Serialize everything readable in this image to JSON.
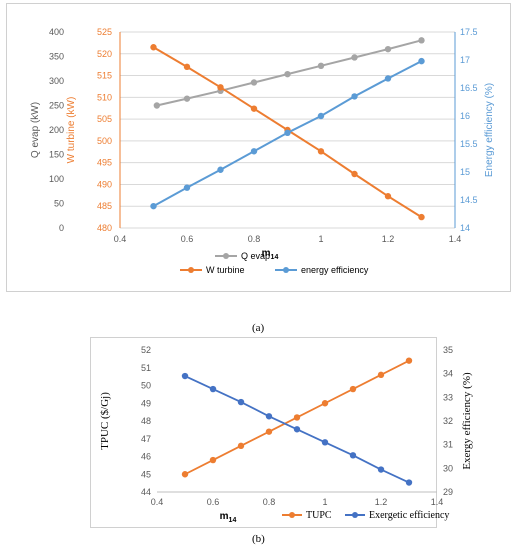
{
  "captions": {
    "a": "(a)",
    "b": "(b)"
  },
  "colors": {
    "gray": "#a5a5a5",
    "orange": "#ed7d31",
    "blue": "#5b9bd5",
    "darkblue": "#4472c4",
    "grid": "#d9d9d9"
  },
  "chart_data": [
    {
      "type": "line",
      "x_values": [
        0.5,
        0.6,
        0.7,
        0.8,
        0.9,
        1.0,
        1.1,
        1.2,
        1.3
      ],
      "xlabel": "m14",
      "xlim": [
        0.4,
        1.4
      ],
      "x_ticks": [
        "0.4",
        "0.6",
        "0.8",
        "1",
        "1.2",
        "1.4"
      ],
      "grid": "horizontal",
      "axes": {
        "left1": {
          "label": "Q evap (kW)",
          "ylim": [
            0,
            400
          ],
          "ticks": [
            "0",
            "50",
            "100",
            "150",
            "200",
            "250",
            "300",
            "350",
            "400"
          ]
        },
        "left2": {
          "label": "W turbine (kW)",
          "ylim": [
            480,
            525
          ],
          "ticks": [
            "480",
            "485",
            "490",
            "495",
            "500",
            "505",
            "510",
            "515",
            "520",
            "525"
          ]
        },
        "right": {
          "label": "Energy efficiency (%)",
          "ylim": [
            14,
            17.5
          ],
          "ticks": [
            "14",
            "14.5",
            "15",
            "15.5",
            "16",
            "16.5",
            "17",
            "17.5"
          ]
        }
      },
      "series": [
        {
          "name": "Q evap",
          "axis": "left1",
          "color": "gray",
          "x": [
            0.51,
            0.6,
            0.7,
            0.8,
            0.9,
            1.0,
            1.1,
            1.2,
            1.3
          ],
          "values": [
            250,
            264,
            280,
            297,
            314,
            331,
            348,
            365,
            383
          ]
        },
        {
          "name": "W turbine",
          "axis": "left2",
          "color": "orange",
          "x": [
            0.5,
            0.6,
            0.7,
            0.8,
            0.9,
            1.0,
            1.1,
            1.2,
            1.3
          ],
          "values": [
            521.5,
            517.0,
            512.3,
            507.4,
            502.5,
            497.6,
            492.4,
            487.3,
            482.5
          ]
        },
        {
          "name": "energy efficiency",
          "axis": "right",
          "color": "blue",
          "x": [
            0.5,
            0.6,
            0.7,
            0.8,
            0.9,
            1.0,
            1.1,
            1.2,
            1.3
          ],
          "values": [
            14.39,
            14.72,
            15.04,
            15.37,
            15.7,
            16.0,
            16.35,
            16.67,
            16.98
          ]
        }
      ],
      "legend": {
        "placement": "bottom"
      }
    },
    {
      "type": "line",
      "x_values": [
        0.5,
        0.6,
        0.7,
        0.8,
        0.9,
        1.0,
        1.1,
        1.2,
        1.3
      ],
      "xlabel": "m14",
      "xlim": [
        0.4,
        1.4
      ],
      "x_ticks": [
        "0.4",
        "0.6",
        "0.8",
        "1",
        "1.2",
        "1.4"
      ],
      "grid": "none",
      "axes": {
        "left": {
          "label": "TPUC ($/Gj)",
          "ylim": [
            44,
            52
          ],
          "ticks": [
            "44",
            "45",
            "46",
            "47",
            "48",
            "49",
            "50",
            "51",
            "52"
          ]
        },
        "right": {
          "label": "Exergy efficiency (%)",
          "ylim": [
            29,
            35
          ],
          "ticks": [
            "29",
            "30",
            "31",
            "32",
            "33",
            "34",
            "35"
          ]
        }
      },
      "series": [
        {
          "name": "TUPC",
          "axis": "left",
          "color": "orange",
          "x": [
            0.5,
            0.6,
            0.7,
            0.8,
            0.9,
            1.0,
            1.1,
            1.2,
            1.3
          ],
          "values": [
            45.0,
            45.8,
            46.6,
            47.4,
            48.2,
            49.0,
            49.8,
            50.6,
            51.4
          ]
        },
        {
          "name": "Exergetic efficiency",
          "axis": "right",
          "color": "darkblue",
          "x": [
            0.5,
            0.6,
            0.7,
            0.8,
            0.9,
            1.0,
            1.1,
            1.2,
            1.3
          ],
          "values": [
            33.9,
            33.35,
            32.8,
            32.2,
            31.65,
            31.1,
            30.55,
            29.95,
            29.4
          ]
        }
      ],
      "legend": {
        "placement": "bottom-right"
      }
    }
  ]
}
